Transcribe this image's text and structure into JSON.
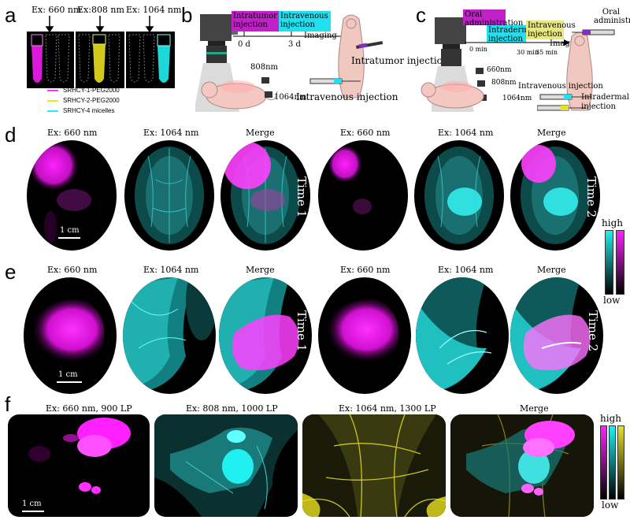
{
  "panel_a": {
    "label": "a",
    "ex_labels": [
      "Ex: 660 nm",
      "Ex:808 nm",
      "Ex: 1064 nm"
    ],
    "legend": [
      {
        "text": "SRHCY-1-PEG2000",
        "color": "#ff30ff"
      },
      {
        "text": "SRHCY-2-PEG2000",
        "color": "#e8e820"
      },
      {
        "text": "SRHCY-4 micelles",
        "color": "#30e8e8"
      }
    ]
  },
  "panel_b": {
    "label": "b",
    "boxes": {
      "intratumor": "Intratumor injection",
      "intravenous": "Intravenous injection"
    },
    "days": [
      "0 d",
      "3 d"
    ],
    "imaging": "Imaging",
    "lasers": [
      "808nm",
      "1064nm"
    ],
    "injection_labels": [
      "Intratumor injection",
      "Intravenous injection"
    ]
  },
  "panel_c": {
    "label": "c",
    "boxes": {
      "oral": "Oral administration",
      "intradermal": "Intradermal injection",
      "intravenous": "Intravenous injection"
    },
    "times": [
      "0 min",
      "30 min",
      "35 min"
    ],
    "imaging": "Imaging",
    "lasers": [
      "660nm",
      "808nm",
      "1064nm"
    ],
    "injection_labels": [
      "Oral administration",
      "Intravenous injection",
      "Intradermal injection"
    ]
  },
  "panel_d": {
    "label": "d",
    "captions": [
      "Ex: 660 nm",
      "Ex: 1064 nm",
      "Merge",
      "Ex: 660 nm",
      "Ex: 1064 nm",
      "Merge"
    ],
    "times": [
      "Time 1",
      "Time 2"
    ],
    "scale_bar": "1 cm"
  },
  "panel_e": {
    "label": "e",
    "captions": [
      "Ex: 660 nm",
      "Ex: 1064 nm",
      "Merge",
      "Ex: 660 nm",
      "Ex: 1064 nm",
      "Merge"
    ],
    "times": [
      "Time 1",
      "Time 2"
    ],
    "scale_bar": "1 cm"
  },
  "panel_f": {
    "label": "f",
    "captions": [
      "Ex: 660 nm, 900 LP",
      "Ex: 808 nm, 1000 LP",
      "Ex: 1064 nm, 1300 LP",
      "Merge"
    ],
    "scale_bar": "1 cm"
  },
  "colorbar_de": {
    "high": "high",
    "low": "low"
  },
  "colorbar_f": {
    "high": "high",
    "low": "low"
  },
  "colors": {
    "magenta": "#ff20ff",
    "cyan": "#20f0f0",
    "yellow": "#e8e020"
  }
}
